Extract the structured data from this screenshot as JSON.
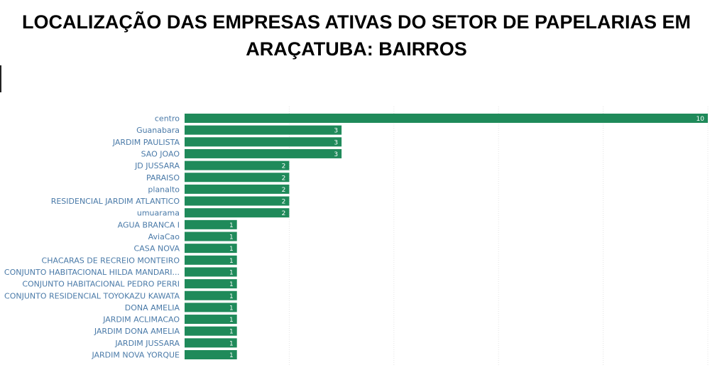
{
  "title": "LOCALIZAÇÃO DAS EMPRESAS ATIVAS DO SETOR DE PAPELARIAS EM ARAÇATUBA: BAIRROS",
  "chart_data": {
    "type": "bar",
    "orientation": "horizontal",
    "title": "LOCALIZAÇÃO DAS EMPRESAS ATIVAS DO SETOR DE PAPELARIAS EM ARAÇATUBA: BAIRROS",
    "categories": [
      "centro",
      "Guanabara",
      "JARDIM PAULISTA",
      "SAO JOAO",
      "JD JUSSARA",
      "PARAISO",
      "planalto",
      "RESIDENCIAL JARDIM ATLANTICO",
      "umuarama",
      "AGUA BRANCA I",
      "AviaCao",
      "CASA NOVA",
      "CHACARAS DE RECREIO MONTEIRO",
      "CONJUNTO HABITACIONAL HILDA MANDARI...",
      "CONJUNTO HABITACIONAL PEDRO PERRI",
      "CONJUNTO RESIDENCIAL TOYOKAZU KAWATA",
      "DONA AMELIA",
      "JARDIM ACLIMACAO",
      "JARDIM DONA AMELIA",
      "JARDIM JUSSARA",
      "JARDIM NOVA YORQUE"
    ],
    "values": [
      10,
      3,
      3,
      3,
      2,
      2,
      2,
      2,
      2,
      1,
      1,
      1,
      1,
      1,
      1,
      1,
      1,
      1,
      1,
      1,
      1
    ],
    "xlim": [
      0,
      10
    ],
    "grid": true,
    "legend": "none",
    "bar_color": "#1f8a5a",
    "label_color": "#4a7aa8",
    "value_label_color": "#ffffff"
  }
}
